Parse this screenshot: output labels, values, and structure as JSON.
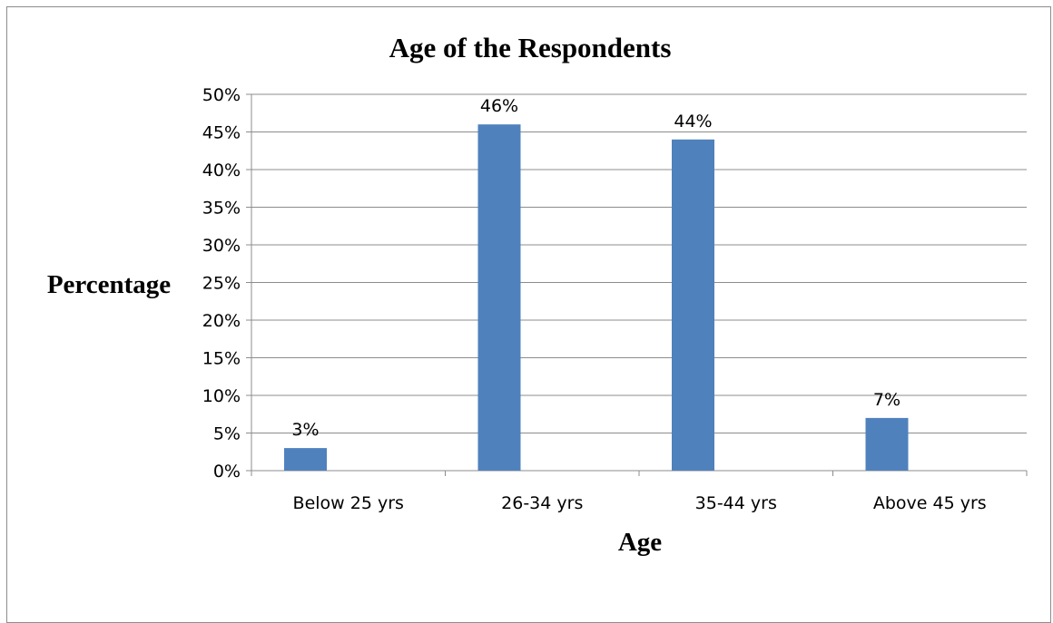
{
  "chart_data": {
    "type": "bar",
    "title": "Age of the Respondents",
    "xlabel": "Age",
    "ylabel": "Percentage",
    "categories": [
      "Below 25 yrs",
      "26-34 yrs",
      "35-44 yrs",
      "Above 45 yrs"
    ],
    "values": [
      3,
      46,
      44,
      7
    ],
    "value_labels": [
      "3%",
      "46%",
      "44%",
      "7%"
    ],
    "ylim": [
      0,
      50
    ],
    "ytick_labels": [
      "0%",
      "5%",
      "10%",
      "15%",
      "20%",
      "25%",
      "30%",
      "35%",
      "40%",
      "45%",
      "50%"
    ],
    "grid": true,
    "legend": "none",
    "bar_color": "#4f81bd"
  }
}
